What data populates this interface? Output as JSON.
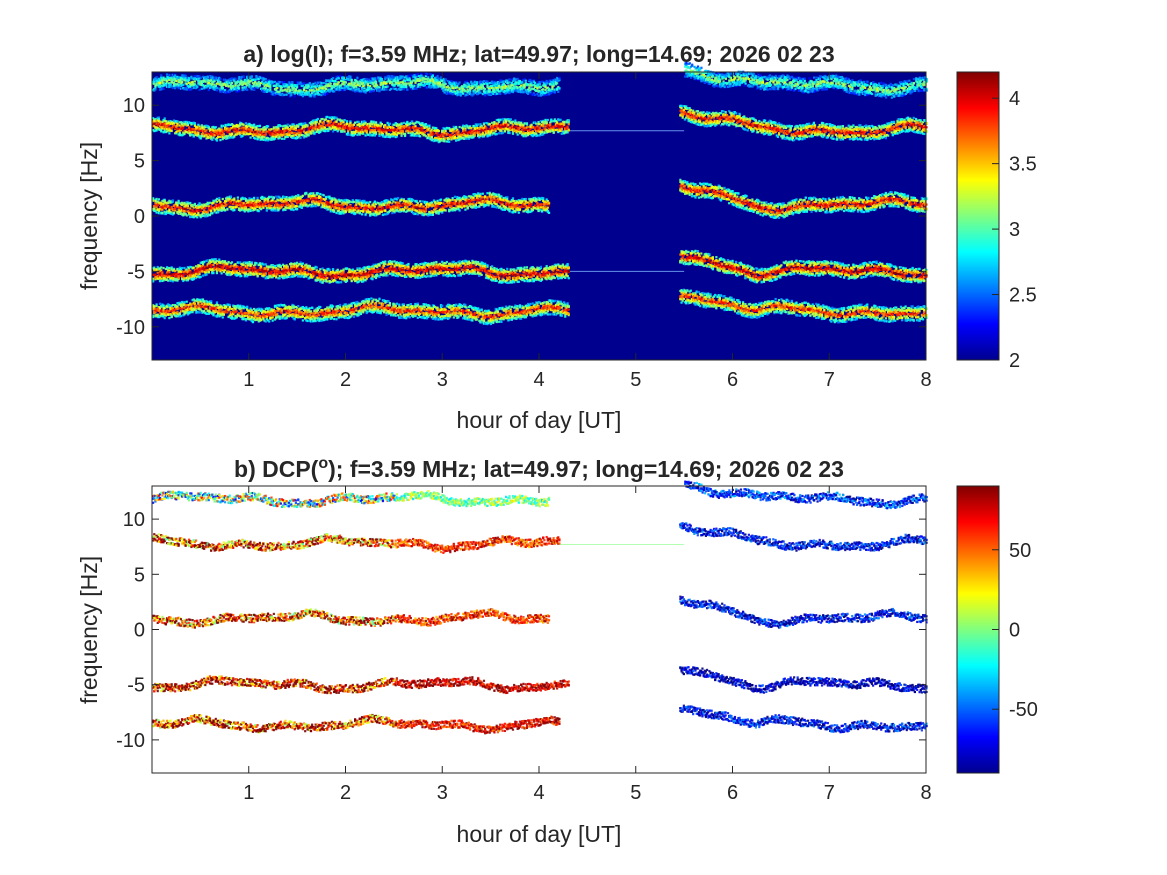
{
  "chart_data": [
    {
      "type": "heatmap",
      "panel": "a",
      "title": "a) log(I); f=3.59 MHz;  lat=49.97; long=14.69; 2026 02 23",
      "xlabel": "hour of day [UT]",
      "ylabel": "frequency [Hz]",
      "xlim": [
        0,
        8
      ],
      "ylim": [
        -13,
        13
      ],
      "x_ticks": [
        1,
        2,
        3,
        4,
        5,
        6,
        7,
        8
      ],
      "y_ticks": [
        -10,
        -5,
        0,
        5,
        10
      ],
      "colorbar": {
        "range": [
          2,
          4.2
        ],
        "ticks": [
          2,
          2.5,
          3,
          3.5,
          4
        ],
        "colormap": "jet"
      },
      "background_color": "#00008f",
      "grid": false,
      "traces": [
        {
          "center_hz": 11.8,
          "segments": [
            [
              0,
              4.2
            ],
            [
              5.5,
              8
            ]
          ],
          "level": 3.2
        },
        {
          "center_hz": 7.8,
          "segments": [
            [
              0,
              4.3
            ],
            [
              5.45,
              8
            ]
          ],
          "level": 4.0
        },
        {
          "center_hz": 1.0,
          "segments": [
            [
              0,
              4.1
            ],
            [
              5.45,
              8
            ]
          ],
          "level": 4.0
        },
        {
          "center_hz": -5.0,
          "segments": [
            [
              0,
              4.3
            ],
            [
              5.45,
              8
            ]
          ],
          "level": 4.1
        },
        {
          "center_hz": -8.6,
          "segments": [
            [
              0,
              4.3
            ],
            [
              5.45,
              8
            ]
          ],
          "level": 3.9
        }
      ],
      "horizontal_lines": [
        {
          "y_hz": 7.7,
          "x_range": [
            4.2,
            5.5
          ]
        },
        {
          "y_hz": -5.0,
          "x_range": [
            4.2,
            5.5
          ]
        }
      ]
    },
    {
      "type": "heatmap",
      "panel": "b",
      "title_prefix": "b) DCP(",
      "title_superscript": "o",
      "title_suffix": "); f=3.59 MHz;  lat=49.97; long=14.69; 2026 02 23",
      "xlabel": "hour of day [UT]",
      "ylabel": "frequency [Hz]",
      "xlim": [
        0,
        8
      ],
      "ylim": [
        -13,
        13
      ],
      "x_ticks": [
        1,
        2,
        3,
        4,
        5,
        6,
        7,
        8
      ],
      "y_ticks": [
        -10,
        -5,
        0,
        5,
        10
      ],
      "colorbar": {
        "range": [
          -90,
          90
        ],
        "ticks": [
          -50,
          0,
          50
        ],
        "colormap": "jet"
      },
      "background_color": "#ffffff",
      "grid": false,
      "traces": [
        {
          "center_hz": 11.8,
          "segments": [
            [
              0,
              4.1
            ],
            [
              5.5,
              8
            ]
          ],
          "dcp_before": 0,
          "dcp_after": -60
        },
        {
          "center_hz": 7.8,
          "segments": [
            [
              0,
              4.2
            ],
            [
              5.45,
              8
            ]
          ],
          "dcp_before": 60,
          "dcp_after": -70
        },
        {
          "center_hz": 1.0,
          "segments": [
            [
              0,
              4.1
            ],
            [
              5.45,
              8
            ]
          ],
          "dcp_before": 60,
          "dcp_after": -70
        },
        {
          "center_hz": -5.0,
          "segments": [
            [
              0,
              4.3
            ],
            [
              5.45,
              8
            ]
          ],
          "dcp_before": 80,
          "dcp_after": -80
        },
        {
          "center_hz": -8.6,
          "segments": [
            [
              0,
              4.2
            ],
            [
              5.45,
              8
            ]
          ],
          "dcp_before": 70,
          "dcp_after": -70
        }
      ],
      "horizontal_lines": [
        {
          "y_hz": 7.7,
          "x_range": [
            4.2,
            5.5
          ],
          "dcp": 0
        }
      ]
    }
  ]
}
